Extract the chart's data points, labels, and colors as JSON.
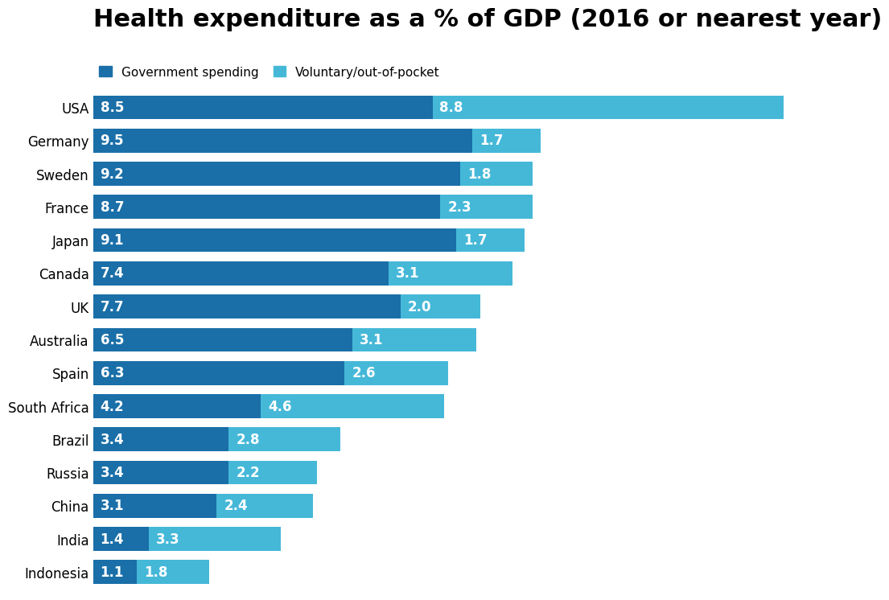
{
  "title": "Health expenditure as a % of GDP (2016 or nearest year)",
  "countries": [
    "USA",
    "Germany",
    "Sweden",
    "France",
    "Japan",
    "Canada",
    "UK",
    "Australia",
    "Spain",
    "South Africa",
    "Brazil",
    "Russia",
    "China",
    "India",
    "Indonesia"
  ],
  "gov_spending": [
    8.5,
    9.5,
    9.2,
    8.7,
    9.1,
    7.4,
    7.7,
    6.5,
    6.3,
    4.2,
    3.4,
    3.4,
    3.1,
    1.4,
    1.1
  ],
  "voluntary": [
    8.8,
    1.7,
    1.8,
    2.3,
    1.7,
    3.1,
    2.0,
    3.1,
    2.6,
    4.6,
    2.8,
    2.2,
    2.4,
    3.3,
    1.8
  ],
  "gov_color": "#1a6fa8",
  "vol_color": "#45b8d8",
  "background_color": "#ffffff",
  "title_fontsize": 22,
  "label_fontsize": 12,
  "bar_label_fontsize": 12,
  "legend_label_gov": "Government spending",
  "legend_label_vol": "Voluntary/out-of-pocket",
  "xlim": [
    0,
    19
  ],
  "bar_height": 0.72
}
